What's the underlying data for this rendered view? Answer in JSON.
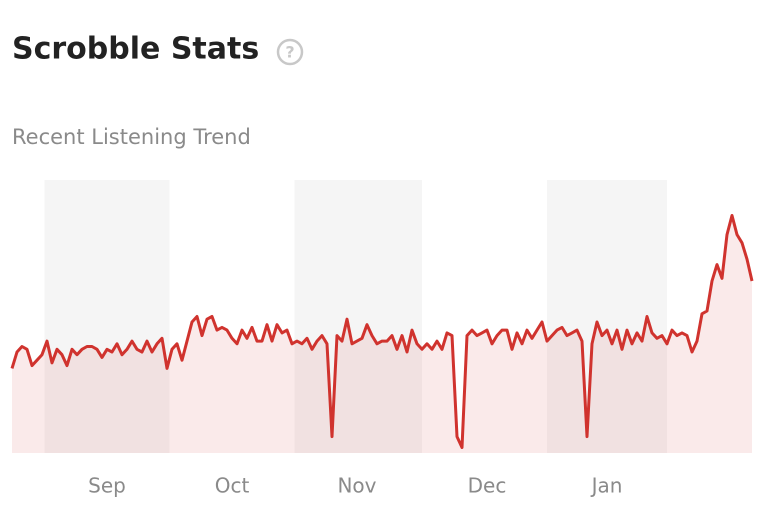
{
  "chart_data": {
    "type": "area-line",
    "title": "Scrobble Stats",
    "subtitle": "Recent Listening Trend",
    "categories": [
      null,
      null,
      null,
      null,
      null,
      null,
      null,
      null,
      null,
      null,
      null,
      null,
      null,
      null,
      null,
      null,
      null,
      null,
      null,
      "Sep",
      null,
      null,
      null,
      null,
      null,
      null,
      null,
      null,
      null,
      null,
      null,
      null,
      null,
      null,
      null,
      null,
      null,
      null,
      null,
      null,
      null,
      null,
      null,
      null,
      "Oct",
      null,
      null,
      null,
      null,
      null,
      null,
      null,
      null,
      null,
      null,
      null,
      null,
      null,
      null,
      null,
      null,
      null,
      null,
      null,
      null,
      null,
      null,
      null,
      null,
      "Nov",
      null,
      null,
      null,
      null,
      null,
      null,
      null,
      null,
      null,
      null,
      null,
      null,
      null,
      null,
      null,
      null,
      null,
      null,
      null,
      null,
      null,
      null,
      null,
      null,
      null,
      "Dec",
      null,
      null,
      null,
      null,
      null,
      null,
      null,
      null,
      null,
      null,
      null,
      null,
      null,
      null,
      null,
      null,
      null,
      null,
      null,
      null,
      null,
      null,
      null,
      "Jan",
      null,
      null,
      null,
      null,
      null,
      null,
      null,
      null,
      null,
      null,
      null,
      null,
      null,
      null,
      null,
      null,
      null,
      null,
      null,
      null,
      null,
      null,
      null,
      null,
      null,
      null,
      null,
      null,
      null
    ],
    "values": [
      31,
      37,
      39,
      38,
      32,
      34,
      36,
      41,
      33,
      38,
      36,
      32,
      38,
      36,
      38,
      39,
      39,
      38,
      35,
      38,
      37,
      40,
      36,
      38,
      41,
      38,
      37,
      41,
      37,
      40,
      42,
      31,
      38,
      40,
      34,
      41,
      48,
      50,
      43,
      49,
      50,
      45,
      46,
      45,
      42,
      40,
      45,
      42,
      46,
      41,
      41,
      47,
      41,
      47,
      44,
      45,
      40,
      41,
      40,
      42,
      38,
      41,
      43,
      40,
      6,
      43,
      41,
      49,
      40,
      41,
      42,
      47,
      43,
      40,
      41,
      41,
      43,
      38,
      43,
      37,
      45,
      40,
      38,
      40,
      38,
      41,
      38,
      44,
      43,
      6,
      2,
      43,
      45,
      43,
      44,
      45,
      40,
      43,
      45,
      45,
      38,
      44,
      40,
      45,
      42,
      45,
      48,
      41,
      43,
      45,
      46,
      43,
      44,
      45,
      41,
      6,
      40,
      48,
      43,
      45,
      40,
      45,
      38,
      45,
      40,
      44,
      41,
      50,
      44,
      42,
      43,
      40,
      45,
      43,
      44,
      43,
      37,
      41,
      51,
      52,
      63,
      69,
      64,
      80,
      87,
      80,
      77,
      71,
      63
    ],
    "color": "#d0332e",
    "ylim": [
      0,
      100
    ]
  }
}
